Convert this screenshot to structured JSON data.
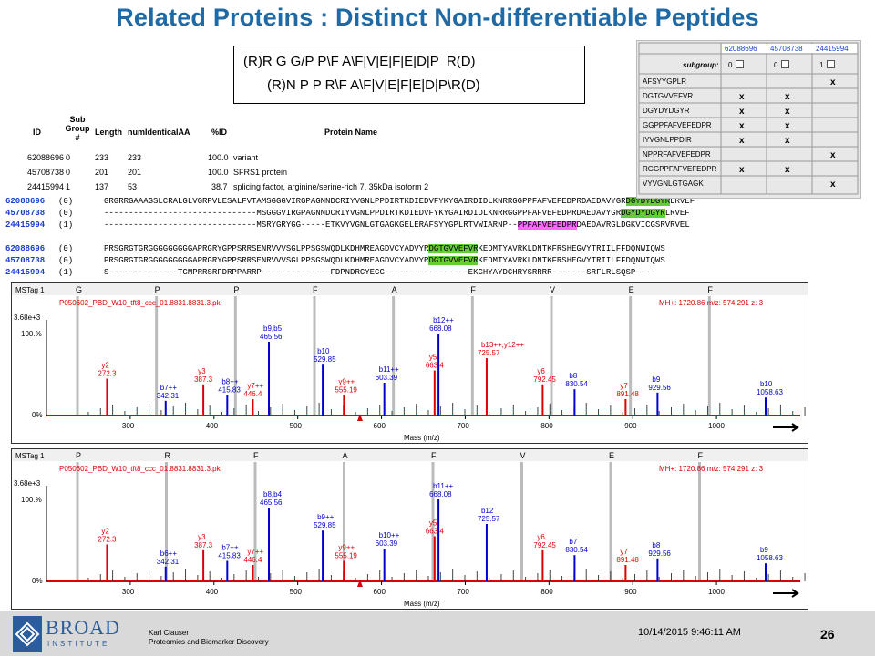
{
  "title": "Related Proteins : Distinct Non-differentiable Peptides",
  "sequence_box": {
    "line1": "(R)R G G/P P\\F A\\F|V|E|F|E|D|P  R(D)",
    "line2": "(R)N P P R\\F A\\F|V|E|F|E|D|P\\R(D)"
  },
  "protein_table": {
    "headers": [
      "ID",
      "Sub Group #",
      "Length",
      "numIdenticalAA",
      "%ID",
      "Protein Name"
    ],
    "rows": [
      {
        "id": "62088696",
        "group": "0",
        "length": "233",
        "identical": "233",
        "pid": "100.0",
        "name": "variant"
      },
      {
        "id": "45708738",
        "group": "0",
        "length": "201",
        "identical": "201",
        "pid": "100.0",
        "name": "SFRS1 protein"
      },
      {
        "id": "24415994",
        "group": "1",
        "length": "137",
        "identical": "53",
        "pid": "38.7",
        "name": "splicing factor, arginine/serine-rich 7, 35kDa isoform 2"
      }
    ]
  },
  "alignment": {
    "block1": [
      {
        "id": "62088696",
        "group": "(0)",
        "seq": "GRGRRGAAAGSLCRALGLVGRPVLESALFVTAMSGGGVIRGPAGNNDCRIYVGNLPPDIRTKDIEDVFYKYGAIRDIDLKNRRGGPPFAFVEFEDPRDAEDAVYGRDGYDYDGYRLRVEF"
      },
      {
        "id": "45708738",
        "group": "(0)",
        "seq": "-------------------------------MSGGGVIRGPAGNNDCRIYVGNLPPDIRTKDIEDVFYKYGAIRDIDLKNRRGGPPFAFVEFEDPRDAEDAVYGRDGYDYDGYRLRVEF"
      },
      {
        "id": "24415994",
        "group": "(1)",
        "seq": "-------------------------------MSRYGRYGG-----ETKVYVGNLGTGAGKGELERAFSYYGPLRTVWIARNP--PPFAFVEFEDPRDAEDAVRGLDGKVICGSRVRVEL"
      }
    ],
    "block2": [
      {
        "id": "62088696",
        "group": "(0)",
        "seq": "PRSGRGTGRGGGGGGGGGAPRGRYGPPSRRSENRVVVSGLPPSGSWQDLKDHMREAGDVCYADVYRDGTGVVEFVRKEDMTYAVRKLDNTKFRSHEGVYTRIILFFDQNWIQWS"
      },
      {
        "id": "45708738",
        "group": "(0)",
        "seq": "PRSGRGTGRGGGGGGGGGAPRGRYGPPSRRSENRVVVSGLPPSGSWQDLKDHMREAGDVCYADVYRDGTGVVEFVRKEDMTYAVRKLDNTKFRSHEGVYTRIILFFDQNWIQWS"
      },
      {
        "id": "24415994",
        "group": "(1)",
        "seq": "S--------------TGMPRRSRFDRPPARRP--------------FDPNDRCYECG-----------------EKGHYAYDCHRYSRRRR-------SRFLRLSQSP----"
      }
    ]
  },
  "peptide_grid": {
    "columns": [
      "62088696",
      "45708738",
      "24415994"
    ],
    "subgroup_label": "subgroup:",
    "subgroup_values": [
      "0",
      "0",
      "1"
    ],
    "rows": [
      {
        "peptide": "AFSYYGPLR",
        "marks": [
          "",
          "",
          "x"
        ]
      },
      {
        "peptide": "DGTGVVEFVR",
        "marks": [
          "x",
          "x",
          ""
        ]
      },
      {
        "peptide": "DGYDYDGYR",
        "marks": [
          "x",
          "x",
          ""
        ]
      },
      {
        "peptide": "GGPPFAFVEFEDPR",
        "marks": [
          "x",
          "x",
          ""
        ]
      },
      {
        "peptide": "IYVGNLPPDIR",
        "marks": [
          "x",
          "x",
          ""
        ]
      },
      {
        "peptide": "NPPRFAFVEFEDPR",
        "marks": [
          "",
          "",
          "x"
        ]
      },
      {
        "peptide": "RGGPPFAFVEFEDPR",
        "marks": [
          "x",
          "x",
          ""
        ]
      },
      {
        "peptide": "VYVGNLGTGAGK",
        "marks": [
          "",
          "",
          "x"
        ]
      }
    ]
  },
  "spectra": [
    {
      "tag": "MSTag 1",
      "filename": "P050602_PBD_W10_tft8_ccc_01.8831.8831.3.pkl",
      "intensity": "3.68e+3",
      "percent": "100.%",
      "mh": "MH+: 1720.86",
      "mz": "m/z: 574.291",
      "z": "z: 3",
      "sequence_labels": [
        "G",
        "P",
        "P",
        "F",
        "A",
        "F",
        "V",
        "E",
        "F"
      ],
      "xlabel": "Mass (m/z)",
      "xticks": [
        "300",
        "400",
        "500",
        "600",
        "700",
        "800",
        "900",
        "1000"
      ],
      "peaks": [
        {
          "label": "y2",
          "mz": "272.3",
          "color": "red"
        },
        {
          "label": "b7++",
          "mz": "342.31",
          "color": "blue"
        },
        {
          "label": "y3",
          "mz": "387.3",
          "color": "red"
        },
        {
          "label": "b8++",
          "mz": "415.83",
          "color": "blue"
        },
        {
          "label": "y7++",
          "mz": "446.4",
          "color": "red"
        },
        {
          "label": "b9,b5",
          "mz": "465.56",
          "color": "blue"
        },
        {
          "label": "b10",
          "mz": "529.85",
          "color": "blue"
        },
        {
          "label": "y9++",
          "mz": "555.19",
          "color": "red"
        },
        {
          "label": "b11++",
          "mz": "603.39",
          "color": "blue"
        },
        {
          "label": "y5",
          "mz": "663.4",
          "color": "red"
        },
        {
          "label": "b12++",
          "mz": "668.08",
          "color": "blue"
        },
        {
          "label": "b13++,y12++",
          "mz": "725.57",
          "color": "red"
        },
        {
          "label": "y6",
          "mz": "792.45",
          "color": "red"
        },
        {
          "label": "b8",
          "mz": "830.54",
          "color": "blue"
        },
        {
          "label": "y7",
          "mz": "891.48",
          "color": "red"
        },
        {
          "label": "b9",
          "mz": "929.56",
          "color": "blue"
        },
        {
          "label": "b10",
          "mz": "1058.63",
          "color": "blue"
        }
      ]
    },
    {
      "tag": "MSTag 1",
      "filename": "P050602_PBD_W10_tft8_ccc_01.8831.8831.3.pkl",
      "intensity": "3.68e+3",
      "percent": "100.%",
      "mh": "MH+: 1720.86",
      "mz": "m/z: 574.291",
      "z": "z: 3",
      "sequence_labels": [
        "P",
        "R",
        "F",
        "A",
        "F",
        "V",
        "E",
        "F"
      ],
      "xlabel": "Mass (m/z)",
      "xticks": [
        "300",
        "400",
        "500",
        "600",
        "700",
        "800",
        "900",
        "1000"
      ],
      "peaks": [
        {
          "label": "y2",
          "mz": "272.3",
          "color": "red"
        },
        {
          "label": "b6++",
          "mz": "342.31",
          "color": "blue"
        },
        {
          "label": "y3",
          "mz": "387.3",
          "color": "red"
        },
        {
          "label": "b7++",
          "mz": "415.83",
          "color": "blue"
        },
        {
          "label": "y7++",
          "mz": "446.4",
          "color": "red"
        },
        {
          "label": "b8,b4",
          "mz": "465.56",
          "color": "blue"
        },
        {
          "label": "b9++",
          "mz": "529.85",
          "color": "blue"
        },
        {
          "label": "y9++",
          "mz": "555.19",
          "color": "red"
        },
        {
          "label": "b10++",
          "mz": "603.39",
          "color": "blue"
        },
        {
          "label": "y5",
          "mz": "663.4",
          "color": "red"
        },
        {
          "label": "b11++",
          "mz": "668.08",
          "color": "blue"
        },
        {
          "label": "b12",
          "mz": "725.57",
          "color": "blue"
        },
        {
          "label": "y6",
          "mz": "792.45",
          "color": "red"
        },
        {
          "label": "b7",
          "mz": "830.54",
          "color": "blue"
        },
        {
          "label": "y7",
          "mz": "891.48",
          "color": "red"
        },
        {
          "label": "b8",
          "mz": "929.56",
          "color": "blue"
        },
        {
          "label": "b9",
          "mz": "1058.63",
          "color": "blue"
        }
      ]
    }
  ],
  "footer": {
    "logo_top": "BROAD",
    "logo_bottom": "INSTITUTE",
    "author": "Karl Clauser",
    "dept": "Proteomics and Biomarker Discovery",
    "date": "10/14/2015 9:46:11 AM",
    "page": "26"
  },
  "colors": {
    "title": "#1f6aa5",
    "blue_peak": "#0000cc",
    "red_peak": "#dd0000",
    "yellow_hl": "#ffff33",
    "pink_hl": "#ff66ff",
    "green_hl": "#66cc33"
  }
}
